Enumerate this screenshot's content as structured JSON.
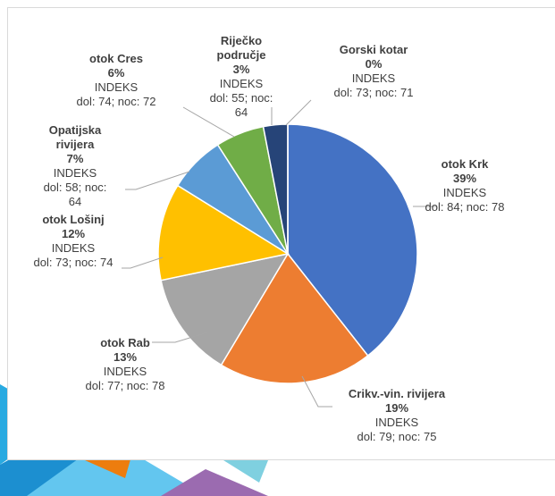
{
  "chart_data": {
    "type": "pie",
    "categories": [
      "otok Krk",
      "Crikv.-vin. rivijera",
      "otok Rab",
      "otok Lošinj",
      "Opatijska rivijera",
      "otok Cres",
      "Riječko područje",
      "Gorski kotar"
    ],
    "values": [
      39,
      19,
      13,
      12,
      7,
      6,
      3,
      0
    ],
    "value_labels": [
      "39%",
      "19%",
      "13%",
      "12%",
      "7%",
      "6%",
      "3%",
      "0%"
    ],
    "index_labels": [
      "INDEKS",
      "INDEKS",
      "INDEKS",
      "INDEKS",
      "INDEKS",
      "INDEKS",
      "INDEKS",
      "INDEKS"
    ],
    "details": [
      "dol: 84; noc: 78",
      "dol: 79; noc: 75",
      "dol: 77; noc: 78",
      "dol: 73; noc: 74",
      "dol: 58; noc: 64",
      "dol: 74; noc: 72",
      "dol: 55; noc: 64",
      "dol: 73; noc: 71"
    ],
    "colors": [
      "#4472c4",
      "#ed7d31",
      "#a5a5a5",
      "#ffc000",
      "#5b9bd5",
      "#70ad47",
      "#264478",
      "#9e480e"
    ]
  }
}
